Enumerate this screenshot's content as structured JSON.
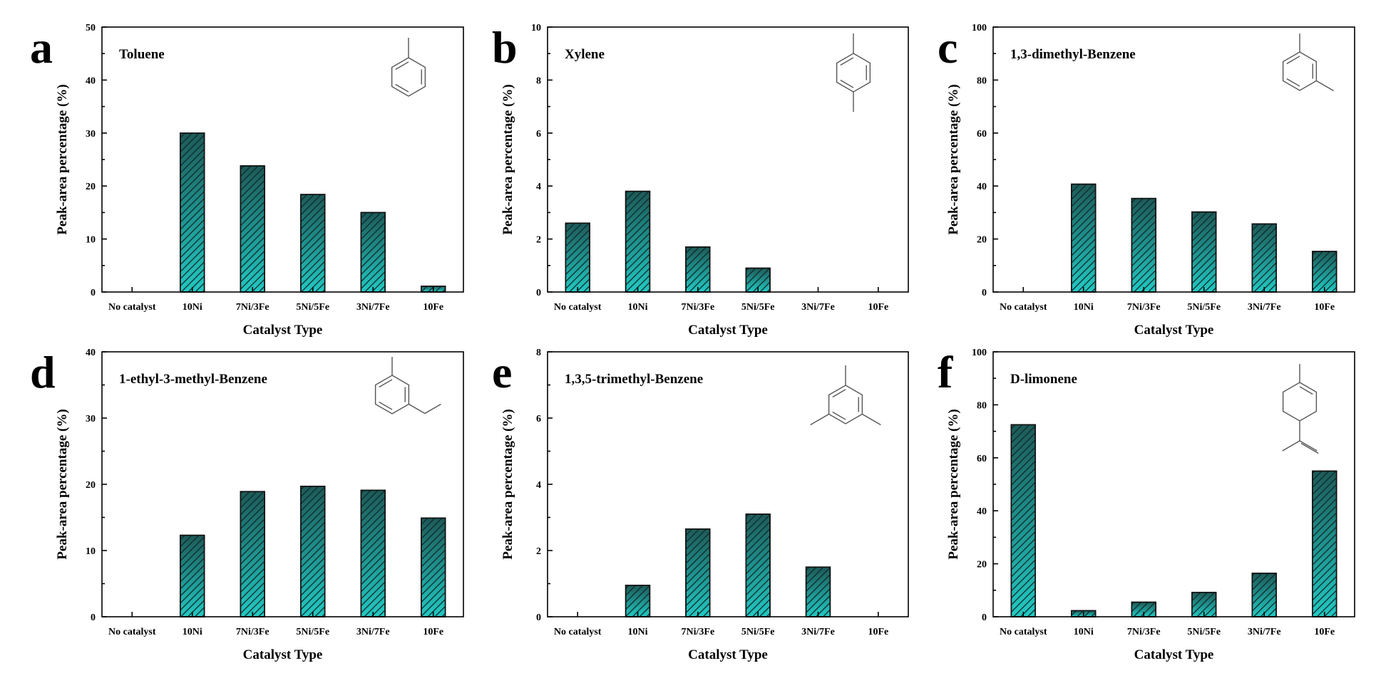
{
  "figure": {
    "bar_fill_top": "#1d5a58",
    "bar_fill_bottom": "#22c8c2",
    "hatch_color": "#0c2a2a"
  },
  "chart_data": [
    {
      "panel": "a",
      "title": "Toluene",
      "type": "bar",
      "categories": [
        "No catalyst",
        "10Ni",
        "7Ni/3Fe",
        "5Ni/5Fe",
        "3Ni/7Fe",
        "10Fe"
      ],
      "values": [
        0,
        30.0,
        23.8,
        18.4,
        15.0,
        1.1
      ],
      "ylim": [
        0,
        50
      ],
      "yticks": [
        0,
        10,
        20,
        30,
        40,
        50
      ],
      "xlabel": "Catalyst Type",
      "ylabel": "Peak-area percentage (%)",
      "structure_icon": "toluene-structure"
    },
    {
      "panel": "b",
      "title": "Xylene",
      "type": "bar",
      "categories": [
        "No catalyst",
        "10Ni",
        "7Ni/3Fe",
        "5Ni/5Fe",
        "3Ni/7Fe",
        "10Fe"
      ],
      "values": [
        2.6,
        3.8,
        1.7,
        0.9,
        0,
        0
      ],
      "ylim": [
        0,
        10
      ],
      "yticks": [
        0,
        2,
        4,
        6,
        8,
        10
      ],
      "xlabel": "Catalyst Type",
      "ylabel": "Peak-area percentage (%)",
      "structure_icon": "p-xylene-structure"
    },
    {
      "panel": "c",
      "title": "1,3-dimethyl-Benzene",
      "type": "bar",
      "categories": [
        "No catalyst",
        "10Ni",
        "7Ni/3Fe",
        "5Ni/5Fe",
        "3Ni/7Fe",
        "10Fe"
      ],
      "values": [
        0,
        40.7,
        35.3,
        30.2,
        25.7,
        15.3
      ],
      "ylim": [
        0,
        100
      ],
      "yticks": [
        0,
        20,
        40,
        60,
        80,
        100
      ],
      "xlabel": "Catalyst Type",
      "ylabel": "Peak-area percentage (%)",
      "structure_icon": "m-xylene-structure"
    },
    {
      "panel": "d",
      "title": "1-ethyl-3-methyl-Benzene",
      "type": "bar",
      "categories": [
        "No catalyst",
        "10Ni",
        "7Ni/3Fe",
        "5Ni/5Fe",
        "3Ni/7Fe",
        "10Fe"
      ],
      "values": [
        0,
        12.3,
        18.9,
        19.7,
        19.1,
        14.9
      ],
      "ylim": [
        0,
        40
      ],
      "yticks": [
        0,
        10,
        20,
        30,
        40
      ],
      "xlabel": "Catalyst Type",
      "ylabel": "Peak-area percentage (%)",
      "structure_icon": "ethyl-methyl-benzene-structure"
    },
    {
      "panel": "e",
      "title": "1,3,5-trimethyl-Benzene",
      "type": "bar",
      "categories": [
        "No catalyst",
        "10Ni",
        "7Ni/3Fe",
        "5Ni/5Fe",
        "3Ni/7Fe",
        "10Fe"
      ],
      "values": [
        0,
        0.95,
        2.65,
        3.1,
        1.5,
        0
      ],
      "ylim": [
        0,
        8
      ],
      "yticks": [
        0,
        2,
        4,
        6,
        8
      ],
      "xlabel": "Catalyst Type",
      "ylabel": "Peak-area percentage (%)",
      "structure_icon": "mesitylene-structure"
    },
    {
      "panel": "f",
      "title": "D-limonene",
      "type": "bar",
      "categories": [
        "No catalyst",
        "10Ni",
        "7Ni/3Fe",
        "5Ni/5Fe",
        "3Ni/7Fe",
        "10Fe"
      ],
      "values": [
        72.5,
        2.3,
        5.5,
        9.2,
        16.4,
        55.0
      ],
      "ylim": [
        0,
        100
      ],
      "yticks": [
        0,
        20,
        40,
        60,
        80,
        100
      ],
      "xlabel": "Catalyst Type",
      "ylabel": "Peak-area percentage (%)",
      "structure_icon": "limonene-structure"
    }
  ]
}
